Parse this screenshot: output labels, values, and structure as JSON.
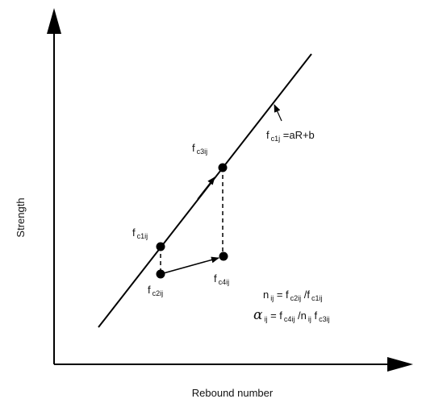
{
  "axes": {
    "y_label": "Strength",
    "x_label": "Rebound number"
  },
  "points": [
    {
      "label": [
        {
          "text": "f"
        },
        {
          "sub": "c1ij"
        }
      ]
    },
    {
      "label": [
        {
          "text": "f"
        },
        {
          "sub": "c3ij"
        }
      ]
    },
    {
      "label": [
        {
          "text": "f"
        },
        {
          "sub": "c2ij"
        }
      ]
    },
    {
      "label": [
        {
          "text": "f"
        },
        {
          "sub": "c4ij"
        }
      ]
    }
  ],
  "line_label": [
    {
      "text": "f"
    },
    {
      "sub": "c1j"
    },
    {
      "text": " =aR+b"
    }
  ],
  "equations": [
    [
      {
        "text": "n"
      },
      {
        "sub": "ij"
      },
      {
        "text": " = f"
      },
      {
        "sub": "c2ij"
      },
      {
        "text": " /f"
      },
      {
        "sub": "c1ij"
      }
    ],
    [
      {
        "text": "α"
      },
      {
        "sub": "ij"
      },
      {
        "text": " = f"
      },
      {
        "sub": "c4ij"
      },
      {
        "text": " /n"
      },
      {
        "sub": "ij"
      },
      {
        "text": "  f"
      },
      {
        "sub": "c3ij"
      }
    ]
  ]
}
